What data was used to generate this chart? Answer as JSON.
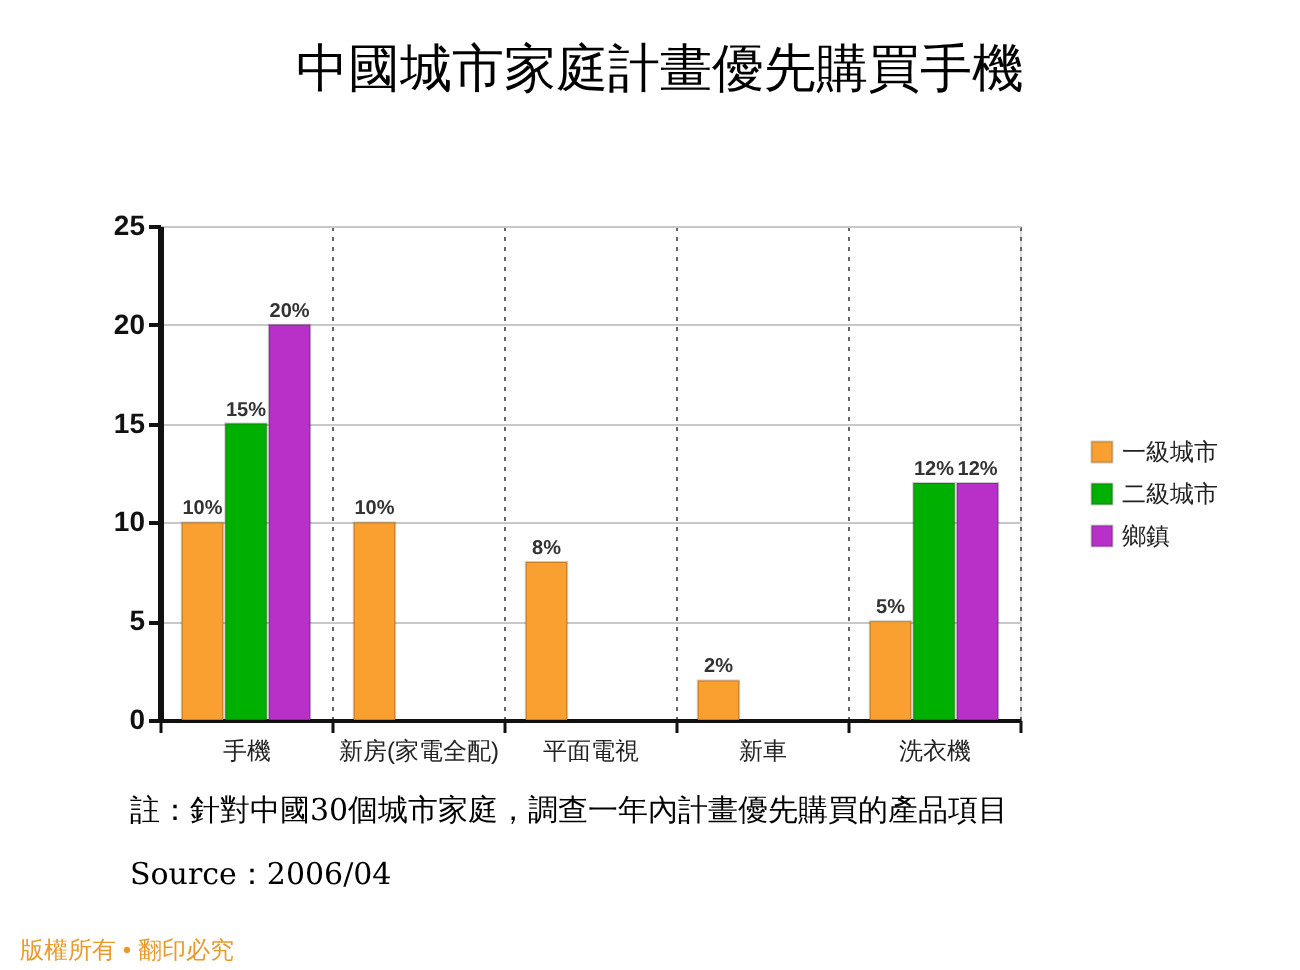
{
  "chart_data": {
    "type": "bar",
    "title": "中國城市家庭計畫優先購買手機",
    "categories": [
      "手機",
      "新房(家電全配)",
      "平面電視",
      "新車",
      "洗衣機"
    ],
    "series": [
      {
        "name": "一級城市",
        "color": "#f9a030",
        "values": [
          10,
          10,
          8,
          2,
          5
        ],
        "value_labels": [
          "10%",
          "10%",
          "8%",
          "2%",
          "5%"
        ]
      },
      {
        "name": "二級城市",
        "color": "#00b000",
        "values": [
          15,
          null,
          null,
          null,
          12
        ],
        "value_labels": [
          "15%",
          null,
          null,
          null,
          "12%"
        ]
      },
      {
        "name": "鄉鎮",
        "color": "#b830c8",
        "values": [
          20,
          null,
          null,
          null,
          12
        ],
        "value_labels": [
          "20%",
          null,
          null,
          null,
          "12%"
        ]
      }
    ],
    "ylim": [
      0,
      25
    ],
    "yticks": [
      0,
      5,
      10,
      15,
      20,
      25
    ],
    "grid": true,
    "legend": "right",
    "annotations": [
      "註：針對中國30個城市家庭，調查一年內計畫優先購買的產品項目",
      "Source：2006/04",
      "版權所有 • 翻印必究"
    ]
  }
}
